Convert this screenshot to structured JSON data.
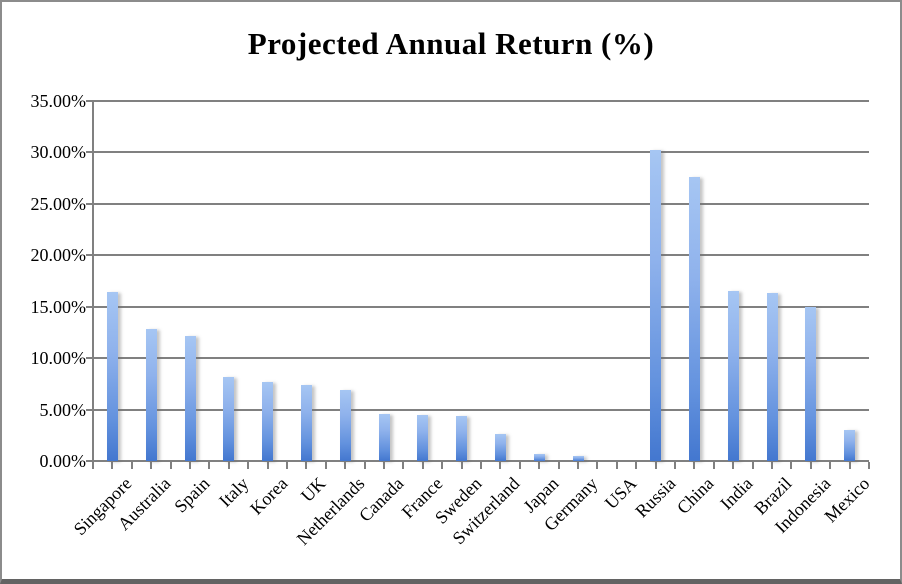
{
  "chart_data": {
    "type": "bar",
    "title": "Projected Annual Return (%)",
    "categories": [
      "Singapore",
      "Australia",
      "Spain",
      "Italy",
      "Korea",
      "UK",
      "Netherlands",
      "Canada",
      "France",
      "Sweden",
      "Switzerland",
      "Japan",
      "Germany",
      "USA",
      "Russia",
      "China",
      "India",
      "Brazil",
      "Indonesia",
      "Mexico"
    ],
    "values": [
      16.4,
      12.8,
      12.2,
      8.2,
      7.7,
      7.4,
      6.9,
      4.6,
      4.5,
      4.4,
      2.6,
      0.7,
      0.5,
      0.0,
      30.2,
      27.6,
      16.5,
      16.3,
      15.0,
      3.0
    ],
    "y_tick_labels": [
      "35.00%",
      "30.00%",
      "25.00%",
      "20.00%",
      "15.00%",
      "10.00%",
      "5.00%",
      "0.00%"
    ],
    "ylim": [
      0,
      35
    ],
    "y_step": 5,
    "xlabel": "",
    "ylabel": "",
    "grid": true,
    "legend_position": "none",
    "colors": {
      "bar_gradient_top": "#a6c6f3",
      "bar_gradient_bottom": "#4377cf",
      "grid_line": "#808080",
      "frame_border": "#8c8c8c",
      "frame_bottom_border": "#636363",
      "text": "#000000",
      "background": "#ffffff"
    }
  }
}
